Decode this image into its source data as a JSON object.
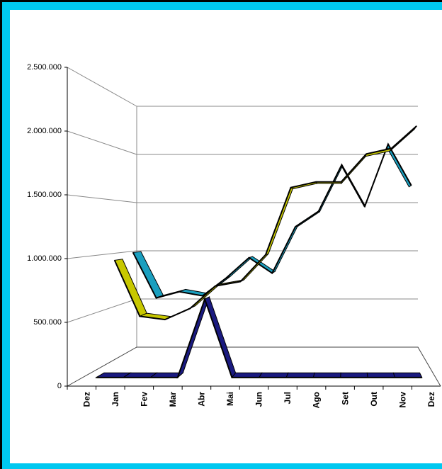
{
  "chart_data": {
    "type": "line3d",
    "categories": [
      "Dez",
      "Jan",
      "Fev",
      "Mar",
      "Abr",
      "Mai",
      "Jun",
      "Jul",
      "Ago",
      "Set",
      "Out",
      "Nov",
      "Dez"
    ],
    "series": [
      {
        "color": "#1a9fbf",
        "values": [
          1000000,
          560000,
          620000,
          580000,
          750000,
          950000,
          800000,
          1250000,
          1400000,
          1850000,
          1450000,
          2050000,
          1650000
        ]
      },
      {
        "color": "#c8c800",
        "values": [
          950000,
          450000,
          420000,
          520000,
          720000,
          760000,
          1000000,
          1600000,
          1650000,
          1650000,
          1900000,
          1950000,
          2150000
        ]
      },
      {
        "color": "#1a1a80",
        "values": [
          0,
          0,
          0,
          0,
          650000,
          0,
          0,
          0,
          0,
          0,
          0,
          0,
          0
        ]
      }
    ],
    "ylim": [
      0,
      2500000
    ],
    "yticks": [
      0,
      {
        "value": 500000,
        "label": "500.000"
      },
      {
        "value": 1000000,
        "label": "1.000.000"
      },
      {
        "value": 1500000,
        "label": "1.500.000"
      },
      {
        "value": 2000000,
        "label": "2.000.000"
      },
      {
        "value": 2500000,
        "label": "2.500.000"
      }
    ],
    "grid": true
  }
}
